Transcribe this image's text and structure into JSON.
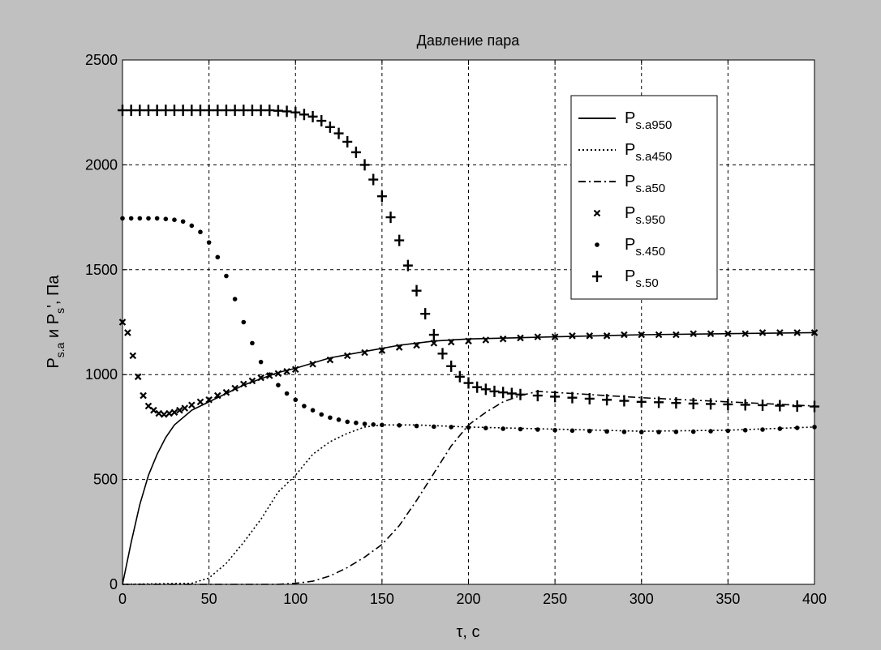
{
  "figure": {
    "background": "#c0c0c0",
    "axes_background": "#ffffff",
    "line_color": "#000000"
  },
  "chart_data": {
    "type": "line",
    "title": "Давление пара",
    "xlabel": "τ, с",
    "ylabel": {
      "main": "P",
      "sub1": "s.a",
      "mid": " и P",
      "sub2": "s",
      "tail": "', Па"
    },
    "xlim": [
      0,
      400
    ],
    "ylim": [
      0,
      2500
    ],
    "x_ticks": [
      0,
      50,
      100,
      150,
      200,
      250,
      300,
      350,
      400
    ],
    "y_ticks": [
      0,
      500,
      1000,
      1500,
      2000,
      2500
    ],
    "grid": true,
    "grid_style": "dashed",
    "legend_position": "top-right",
    "series": [
      {
        "name": "Ps.a950",
        "legend": {
          "main": "P",
          "sub": "s.a950"
        },
        "style": "solid",
        "marker": "none",
        "x": [
          0,
          5,
          10,
          15,
          20,
          25,
          30,
          40,
          50,
          60,
          70,
          80,
          90,
          100,
          120,
          140,
          160,
          180,
          200,
          250,
          300,
          350,
          400
        ],
        "y": [
          0,
          200,
          380,
          520,
          620,
          700,
          760,
          830,
          870,
          910,
          950,
          980,
          1010,
          1030,
          1080,
          1110,
          1140,
          1160,
          1170,
          1180,
          1190,
          1195,
          1200
        ]
      },
      {
        "name": "Ps.a450",
        "legend": {
          "main": "P",
          "sub": "s.a450"
        },
        "style": "dotted",
        "marker": "none",
        "x": [
          0,
          40,
          50,
          60,
          70,
          80,
          90,
          100,
          110,
          120,
          130,
          140,
          150,
          170,
          200,
          250,
          300,
          350,
          400
        ],
        "y": [
          0,
          5,
          30,
          100,
          200,
          310,
          440,
          520,
          620,
          680,
          720,
          750,
          760,
          760,
          750,
          740,
          730,
          735,
          750
        ]
      },
      {
        "name": "Ps.a50",
        "legend": {
          "main": "P",
          "sub": "s.a50"
        },
        "style": "dashdot",
        "marker": "none",
        "x": [
          0,
          90,
          100,
          110,
          120,
          130,
          140,
          150,
          160,
          170,
          180,
          190,
          200,
          210,
          220,
          230,
          240,
          260,
          300,
          350,
          400
        ],
        "y": [
          0,
          0,
          5,
          15,
          40,
          80,
          130,
          190,
          280,
          400,
          530,
          660,
          760,
          820,
          870,
          900,
          920,
          910,
          890,
          870,
          850
        ]
      },
      {
        "name": "Ps.950",
        "legend": {
          "main": "P",
          "sub": "s.950"
        },
        "style": "none",
        "marker": "x",
        "x": [
          0,
          3,
          6,
          9,
          12,
          15,
          18,
          21,
          24,
          27,
          30,
          33,
          36,
          40,
          45,
          50,
          55,
          60,
          65,
          70,
          75,
          80,
          85,
          90,
          95,
          100,
          110,
          120,
          130,
          140,
          150,
          160,
          170,
          180,
          190,
          200,
          210,
          220,
          230,
          240,
          250,
          260,
          270,
          280,
          290,
          300,
          310,
          320,
          330,
          340,
          350,
          360,
          370,
          380,
          390,
          400
        ],
        "y": [
          1250,
          1200,
          1090,
          990,
          900,
          850,
          830,
          815,
          810,
          815,
          820,
          830,
          840,
          855,
          870,
          880,
          900,
          915,
          935,
          955,
          970,
          985,
          995,
          1005,
          1015,
          1025,
          1050,
          1070,
          1090,
          1105,
          1115,
          1130,
          1140,
          1150,
          1155,
          1160,
          1165,
          1170,
          1175,
          1180,
          1180,
          1185,
          1185,
          1185,
          1190,
          1190,
          1190,
          1190,
          1195,
          1195,
          1195,
          1195,
          1200,
          1200,
          1200,
          1200
        ]
      },
      {
        "name": "Ps.450",
        "legend": {
          "main": "P",
          "sub": "s.450"
        },
        "style": "none",
        "marker": "dot",
        "x": [
          0,
          5,
          10,
          15,
          20,
          25,
          30,
          35,
          40,
          45,
          50,
          55,
          60,
          65,
          70,
          75,
          80,
          85,
          90,
          95,
          100,
          105,
          110,
          115,
          120,
          125,
          130,
          135,
          140,
          145,
          150,
          160,
          170,
          180,
          190,
          200,
          210,
          220,
          230,
          240,
          250,
          260,
          270,
          280,
          290,
          300,
          310,
          320,
          330,
          340,
          350,
          360,
          370,
          380,
          390,
          400
        ],
        "y": [
          1745,
          1745,
          1745,
          1745,
          1745,
          1742,
          1738,
          1730,
          1710,
          1680,
          1630,
          1560,
          1470,
          1360,
          1250,
          1150,
          1060,
          1000,
          950,
          910,
          880,
          850,
          830,
          810,
          795,
          785,
          775,
          770,
          765,
          762,
          760,
          758,
          755,
          752,
          750,
          748,
          745,
          742,
          740,
          738,
          735,
          733,
          731,
          729,
          727,
          726,
          726,
          727,
          728,
          730,
          732,
          735,
          738,
          742,
          746,
          750
        ]
      },
      {
        "name": "Ps.50",
        "legend": {
          "main": "P",
          "sub": "s.50"
        },
        "style": "none",
        "marker": "plus",
        "x": [
          0,
          5,
          10,
          15,
          20,
          25,
          30,
          35,
          40,
          45,
          50,
          55,
          60,
          65,
          70,
          75,
          80,
          85,
          90,
          95,
          100,
          105,
          110,
          115,
          120,
          125,
          130,
          135,
          140,
          145,
          150,
          155,
          160,
          165,
          170,
          175,
          180,
          185,
          190,
          195,
          200,
          205,
          210,
          215,
          220,
          225,
          230,
          240,
          250,
          260,
          270,
          280,
          290,
          300,
          310,
          320,
          330,
          340,
          350,
          360,
          370,
          380,
          390,
          400
        ],
        "y": [
          2260,
          2260,
          2260,
          2260,
          2260,
          2260,
          2260,
          2260,
          2260,
          2260,
          2260,
          2260,
          2260,
          2260,
          2260,
          2260,
          2260,
          2260,
          2258,
          2255,
          2250,
          2240,
          2230,
          2210,
          2180,
          2150,
          2110,
          2060,
          2000,
          1930,
          1850,
          1750,
          1640,
          1520,
          1400,
          1290,
          1190,
          1100,
          1040,
          990,
          960,
          940,
          930,
          920,
          915,
          910,
          905,
          900,
          895,
          890,
          885,
          880,
          875,
          870,
          868,
          865,
          862,
          860,
          858,
          856,
          854,
          852,
          850,
          848
        ]
      }
    ]
  }
}
